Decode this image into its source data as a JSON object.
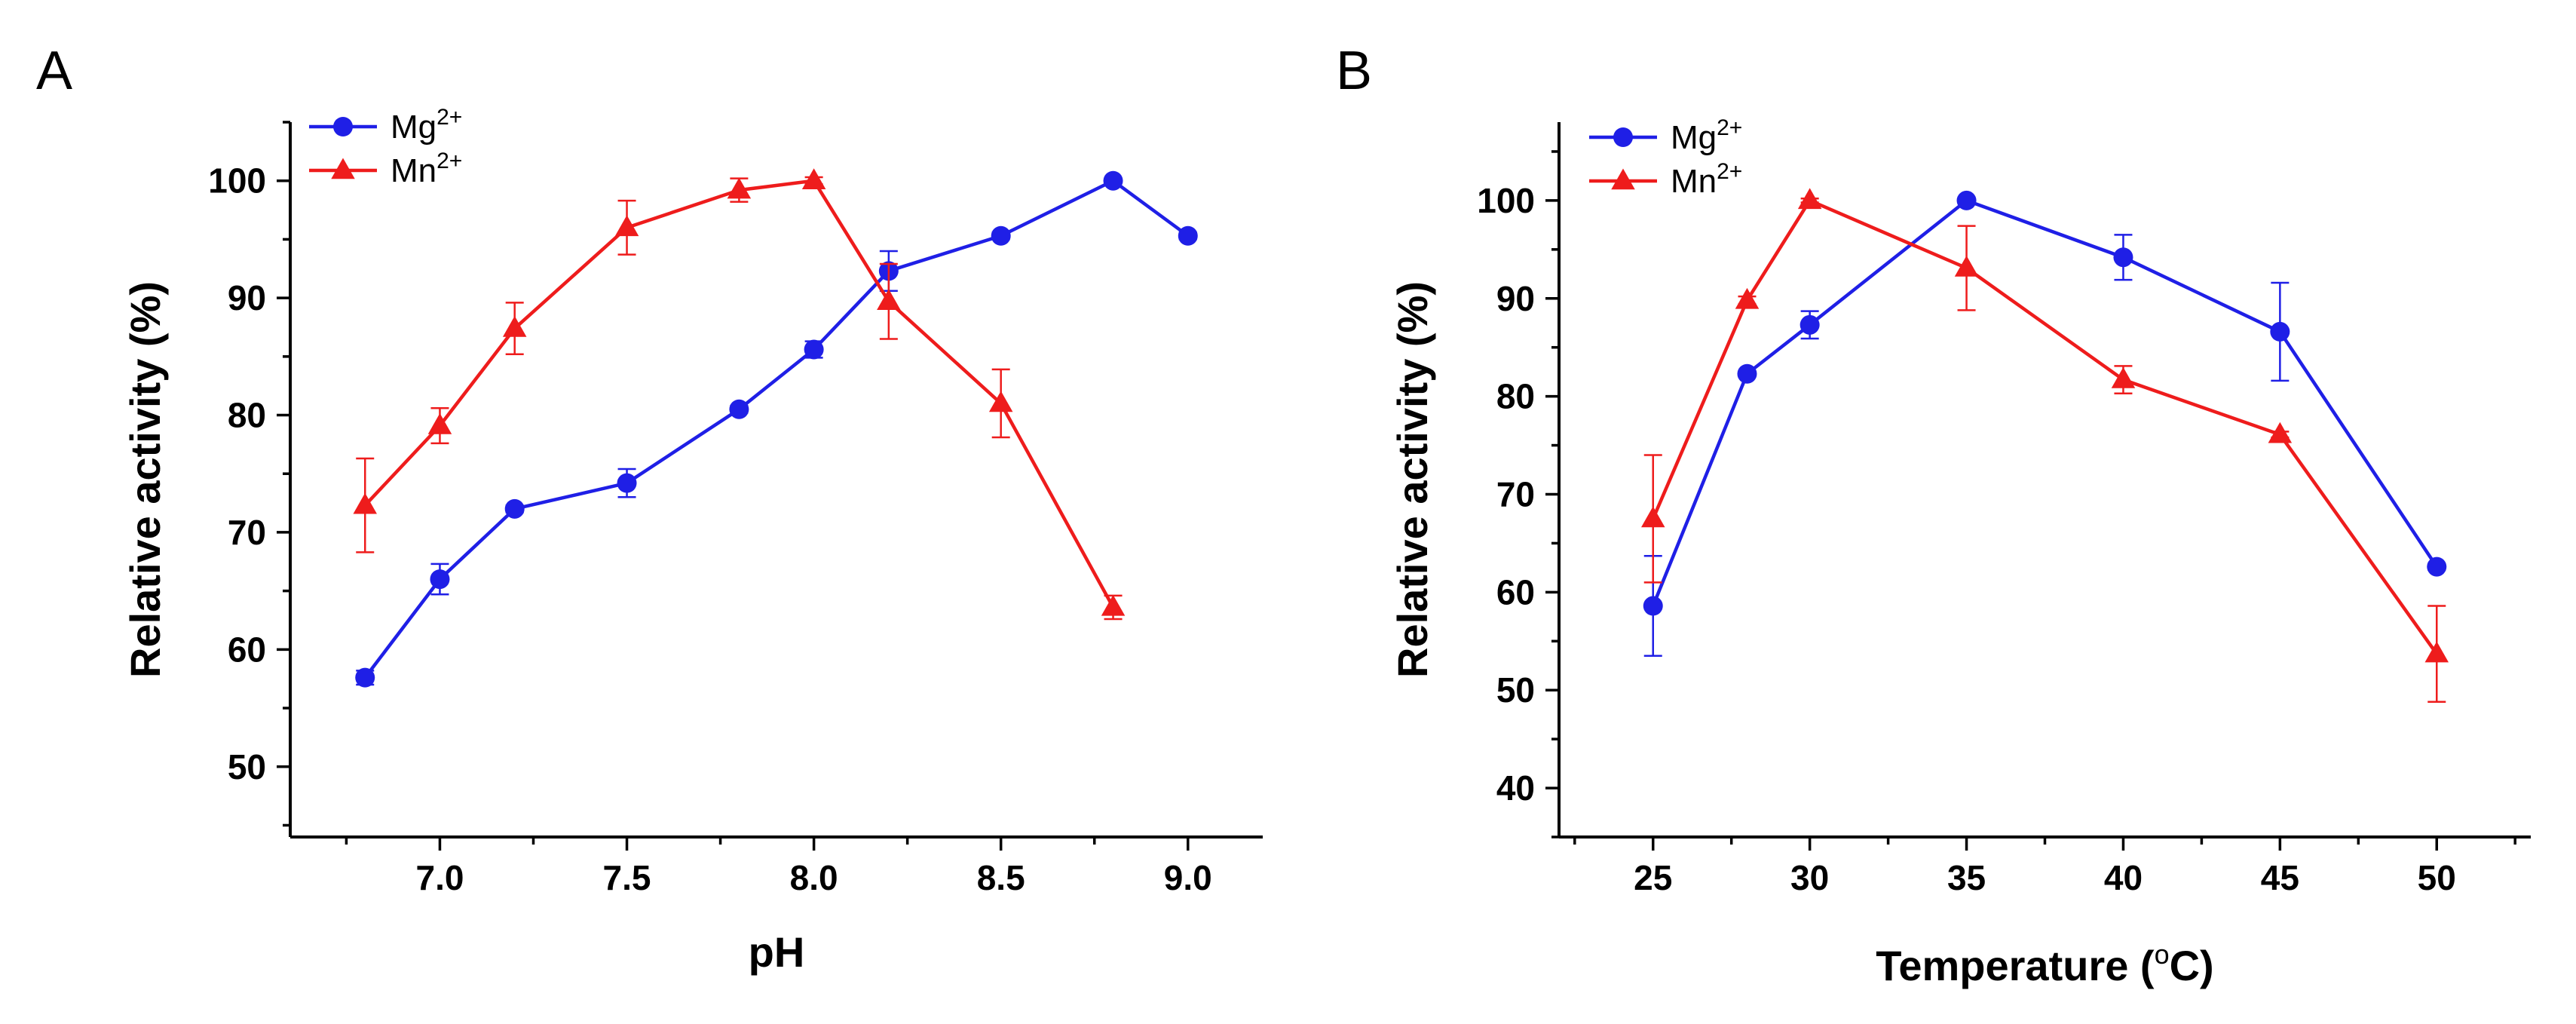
{
  "colors": {
    "mg": "#1f1fe6",
    "mn": "#ee1c1c",
    "axis": "#000000"
  },
  "chart_data": [
    {
      "id": "A",
      "type": "line",
      "panel_label": "A",
      "xlabel": "pH",
      "ylabel": "Relative activity (%)",
      "xlim": [
        6.6,
        9.2
      ],
      "ylim": [
        44,
        105
      ],
      "xticks": [
        7.0,
        7.5,
        8.0,
        8.5,
        9.0
      ],
      "xtick_labels": [
        "7.0",
        "7.5",
        "8.0",
        "8.5",
        "9.0"
      ],
      "yticks": [
        50,
        60,
        70,
        80,
        90,
        100
      ],
      "ytick_labels": [
        "50",
        "60",
        "70",
        "80",
        "90",
        "100"
      ],
      "legend": "top-left",
      "series": [
        {
          "name": "Mg2+",
          "ion": "Mg",
          "charge": "2+",
          "marker": "circle",
          "color_key": "mg",
          "x": [
            6.8,
            7.0,
            7.2,
            7.5,
            7.8,
            8.0,
            8.2,
            8.5,
            8.8,
            9.0
          ],
          "y": [
            57.6,
            66.0,
            72.0,
            74.2,
            80.5,
            85.6,
            92.3,
            95.3,
            100.0,
            95.3
          ],
          "err": [
            0.6,
            1.3,
            0.3,
            1.2,
            0.3,
            0.7,
            1.7,
            0.3,
            0.2,
            0.3
          ]
        },
        {
          "name": "Mn2+",
          "ion": "Mn",
          "charge": "2+",
          "marker": "triangle",
          "color_key": "mn",
          "x": [
            6.8,
            7.0,
            7.2,
            7.5,
            7.8,
            8.0,
            8.2,
            8.5,
            8.8
          ],
          "y": [
            72.3,
            79.1,
            87.4,
            96.0,
            99.2,
            100.0,
            89.7,
            81.0,
            63.6
          ],
          "err": [
            4.0,
            1.5,
            2.2,
            2.3,
            1.0,
            0.3,
            3.2,
            2.9,
            1.0
          ]
        }
      ]
    },
    {
      "id": "B",
      "type": "line",
      "panel_label": "B",
      "xlabel": "Temperature (",
      "xlabel_unit_sup": "o",
      "xlabel_unit": "C)",
      "ylabel": "Relative activity (%)",
      "xlim": [
        22,
        53
      ],
      "ylim": [
        35,
        108
      ],
      "xticks": [
        25,
        30,
        35,
        40,
        45,
        50
      ],
      "xtick_labels": [
        "25",
        "30",
        "35",
        "40",
        "45",
        "50"
      ],
      "yticks": [
        40,
        50,
        60,
        70,
        80,
        90,
        100
      ],
      "ytick_labels": [
        "40",
        "50",
        "60",
        "70",
        "80",
        "90",
        "100"
      ],
      "legend": "top-left",
      "series": [
        {
          "name": "Mg2+",
          "ion": "Mg",
          "charge": "2+",
          "marker": "circle",
          "color_key": "mg",
          "x": [
            25,
            28,
            30,
            35,
            40,
            45,
            50
          ],
          "y": [
            58.6,
            82.3,
            87.3,
            100.0,
            94.2,
            86.6,
            62.6
          ],
          "err": [
            5.1,
            0.3,
            1.4,
            0.2,
            2.3,
            5.0,
            0.3
          ]
        },
        {
          "name": "Mn2+",
          "ion": "Mn",
          "charge": "2+",
          "marker": "triangle",
          "color_key": "mn",
          "x": [
            25,
            28,
            30,
            35,
            40,
            45,
            50
          ],
          "y": [
            67.5,
            89.8,
            100.0,
            93.1,
            81.7,
            76.1,
            53.7
          ],
          "err": [
            6.5,
            0.4,
            0.2,
            4.3,
            1.4,
            0.3,
            4.9
          ]
        }
      ]
    }
  ]
}
